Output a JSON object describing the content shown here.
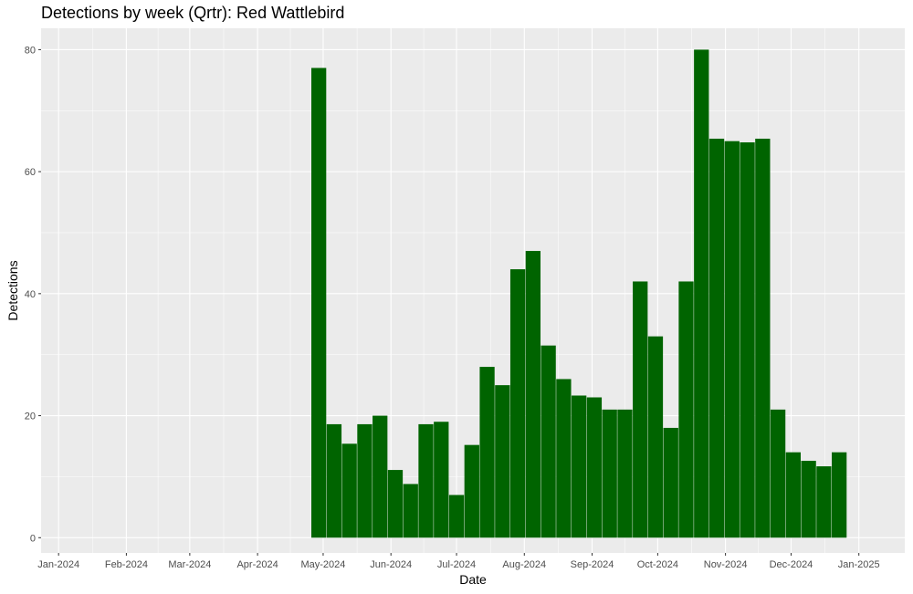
{
  "chart_data": {
    "type": "bar",
    "title": "Detections by week (Qrtr): Red Wattlebird",
    "xlabel": "Date",
    "ylabel": "Detections",
    "ylim": [
      -2.5,
      83.5
    ],
    "x_range": [
      "2023-12-24",
      "2025-01-22"
    ],
    "bar_color": "#006400",
    "panel_bg": "#ebebeb",
    "grid": true,
    "y_ticks": [
      0,
      20,
      40,
      60,
      80
    ],
    "x_ticks": [
      {
        "date": "2024-01-01",
        "label": "Jan-2024"
      },
      {
        "date": "2024-02-01",
        "label": "Feb-2024"
      },
      {
        "date": "2024-03-01",
        "label": "Mar-2024"
      },
      {
        "date": "2024-04-01",
        "label": "Apr-2024"
      },
      {
        "date": "2024-05-01",
        "label": "May-2024"
      },
      {
        "date": "2024-06-01",
        "label": "Jun-2024"
      },
      {
        "date": "2024-07-01",
        "label": "Jul-2024"
      },
      {
        "date": "2024-08-01",
        "label": "Aug-2024"
      },
      {
        "date": "2024-09-01",
        "label": "Sep-2024"
      },
      {
        "date": "2024-10-01",
        "label": "Oct-2024"
      },
      {
        "date": "2024-11-01",
        "label": "Nov-2024"
      },
      {
        "date": "2024-12-01",
        "label": "Dec-2024"
      },
      {
        "date": "2025-01-01",
        "label": "Jan-2025"
      }
    ],
    "series": [
      {
        "x": [
          "2024-04-29",
          "2024-05-06",
          "2024-05-13",
          "2024-05-20",
          "2024-05-27",
          "2024-06-03",
          "2024-06-10",
          "2024-06-17",
          "2024-06-24",
          "2024-07-01",
          "2024-07-08",
          "2024-07-15",
          "2024-07-22",
          "2024-07-29",
          "2024-08-05",
          "2024-08-12",
          "2024-08-19",
          "2024-08-26",
          "2024-09-02",
          "2024-09-09",
          "2024-09-16",
          "2024-09-23",
          "2024-09-30",
          "2024-10-07",
          "2024-10-14",
          "2024-10-21",
          "2024-10-28",
          "2024-11-04",
          "2024-11-11",
          "2024-11-18",
          "2024-11-25",
          "2024-12-02",
          "2024-12-09",
          "2024-12-16",
          "2024-12-23"
        ],
        "values": [
          77,
          18.6,
          15.4,
          18.6,
          20,
          11.1,
          8.8,
          18.6,
          19,
          7,
          15.2,
          28,
          25,
          44,
          47,
          31.5,
          26,
          23.3,
          23,
          21,
          21,
          42,
          33,
          18,
          42,
          80,
          65.4,
          65,
          64.8,
          65.4,
          21,
          14,
          12.6,
          11.7,
          14
        ]
      }
    ]
  }
}
